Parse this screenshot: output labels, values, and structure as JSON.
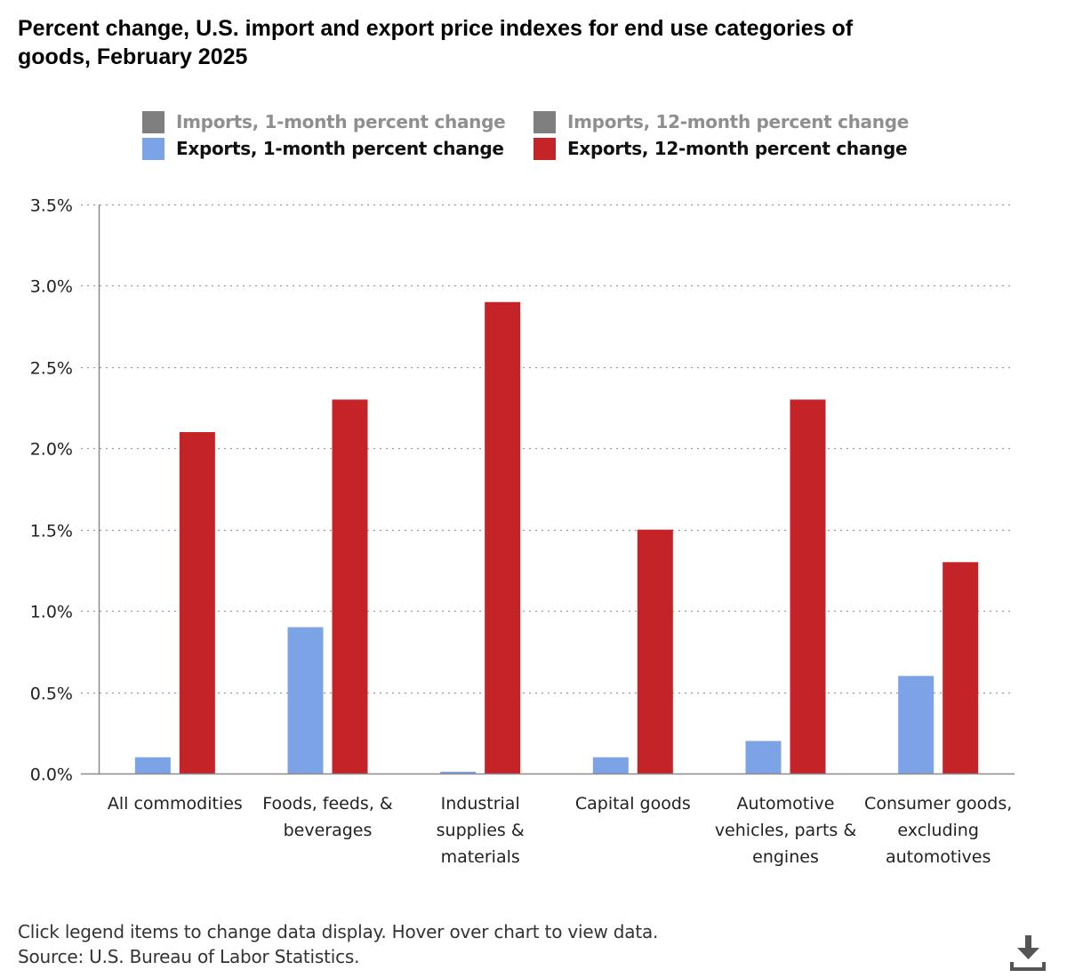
{
  "chart_data": {
    "type": "bar",
    "title": "Percent change, U.S. import and export price indexes for end use categories of goods, February 2025",
    "xlabel": "",
    "ylabel": "",
    "ylim": [
      0,
      3.5
    ],
    "yticks": [
      0,
      0.5,
      1.0,
      1.5,
      2.0,
      2.5,
      3.0,
      3.5
    ],
    "ytick_labels": [
      "0.0%",
      "0.5%",
      "1.0%",
      "1.5%",
      "2.0%",
      "2.5%",
      "3.0%",
      "3.5%"
    ],
    "grid": true,
    "legend_position": "top",
    "categories": [
      [
        "All commodities"
      ],
      [
        "Foods, feeds, &",
        "beverages"
      ],
      [
        "Industrial",
        "supplies &",
        "materials"
      ],
      [
        "Capital goods"
      ],
      [
        "Automotive",
        "vehicles, parts &",
        "engines"
      ],
      [
        "Consumer goods,",
        "excluding",
        "automotives"
      ]
    ],
    "series": [
      {
        "name": "Imports, 1-month percent change",
        "color": "#7f7f7f",
        "visible": false,
        "values": []
      },
      {
        "name": "Imports, 12-month percent change",
        "color": "#7f7f7f",
        "visible": false,
        "values": []
      },
      {
        "name": "Exports, 1-month percent change",
        "color": "#7ba3e6",
        "visible": true,
        "values": [
          0.1,
          0.9,
          0.0,
          0.1,
          0.2,
          0.6
        ]
      },
      {
        "name": "Exports, 12-month percent change",
        "color": "#c42428",
        "visible": true,
        "values": [
          2.1,
          2.3,
          2.9,
          1.5,
          2.3,
          1.3
        ]
      }
    ]
  },
  "header": {
    "title_line1": "Percent change, U.S. import and export price indexes for end use categories of",
    "title_line2": "goods, February 2025"
  },
  "legend": {
    "items": [
      {
        "label": "Imports, 1-month percent change",
        "color": "#7f7f7f",
        "state": "hidden"
      },
      {
        "label": "Imports, 12-month percent change",
        "color": "#7f7f7f",
        "state": "hidden"
      },
      {
        "label": "Exports, 1-month percent change",
        "color": "#7ba3e6",
        "state": "visible"
      },
      {
        "label": "Exports, 12-month percent change",
        "color": "#c42428",
        "state": "visible"
      }
    ]
  },
  "footer": {
    "note": "Click legend items to change data display. Hover over chart to view data.",
    "source": "Source: U.S. Bureau of Labor Statistics."
  },
  "toolbar": {
    "download_icon": "download-icon"
  }
}
